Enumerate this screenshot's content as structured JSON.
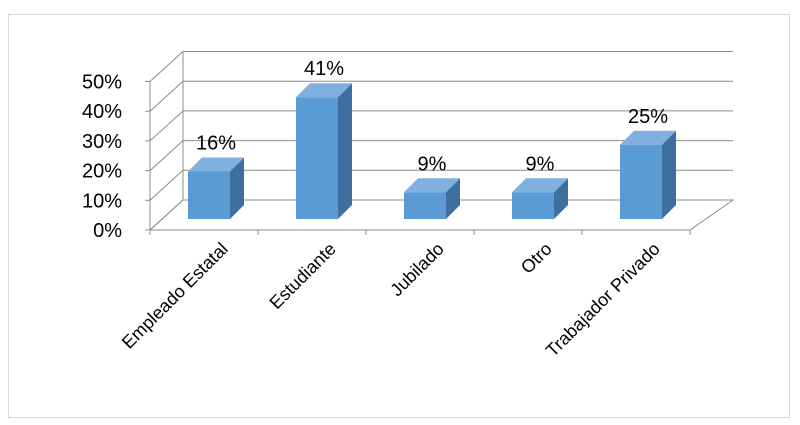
{
  "chart_data": {
    "type": "bar",
    "style": "3d-column",
    "categories": [
      "Empleado Estatal",
      "Estudiante",
      "Jubilado",
      "Otro",
      "Trabajador Privado"
    ],
    "values": [
      16,
      41,
      9,
      9,
      25
    ],
    "data_labels": [
      "16%",
      "41%",
      "9%",
      "9%",
      "25%"
    ],
    "yticks": [
      "0%",
      "10%",
      "20%",
      "30%",
      "40%",
      "50%"
    ],
    "ylim": [
      0,
      50
    ],
    "title": "",
    "xlabel": "",
    "ylabel": "",
    "grid": true,
    "legend": "none",
    "colors": {
      "bar_front": "#5b9bd5",
      "bar_top": "#7fb0e0",
      "bar_side": "#3e6f9e",
      "grid": "#8c8c8c"
    }
  }
}
